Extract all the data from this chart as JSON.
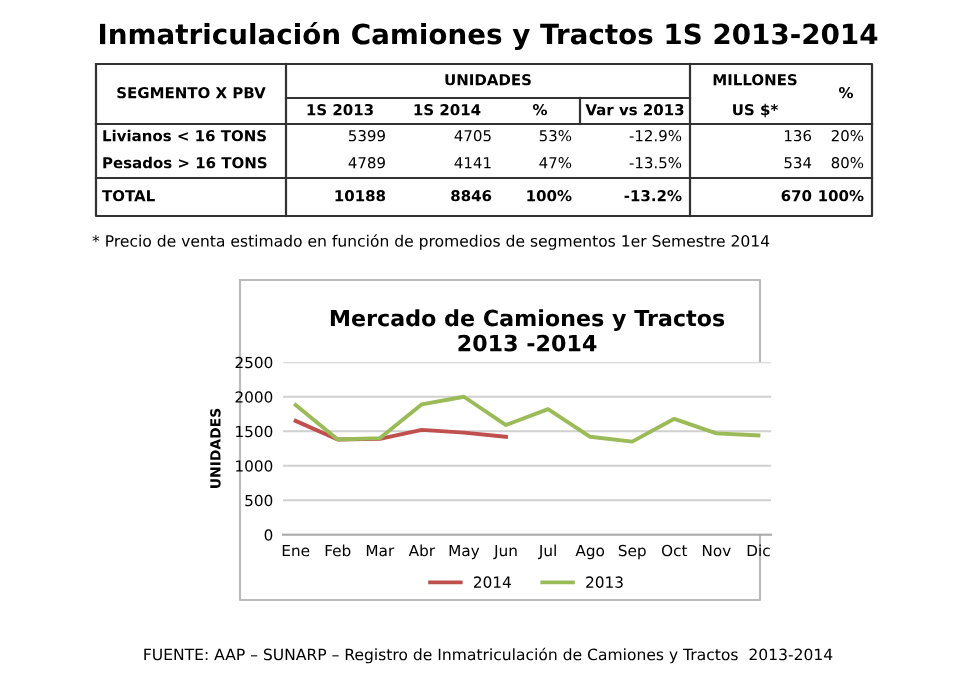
{
  "chart_data": [
    {
      "type": "other",
      "title": "Inmatriculación Camiones y Tractos 1S 2013-2014",
      "annotations": [
        "SEGMENTO X PBV",
        "UNIDADES",
        "MILLONES",
        "%",
        "1S 2013",
        "1S 2014",
        "%",
        "Var vs 2013",
        "US $*",
        "Livianos < 16 TONS",
        "5399",
        "4705",
        "53%",
        "-12.9%",
        "136",
        "20%",
        "Pesados > 16 TONS",
        "4789",
        "4141",
        "47%",
        "-13.5%",
        "534",
        "80%",
        "TOTAL",
        "10188",
        "8846",
        "100%",
        "-13.2%",
        "670",
        "100%",
        "* Precio de venta estimado en función de promedios de segmentos 1er Semestre 2014"
      ]
    },
    {
      "type": "line",
      "title": "Mercado de Camiones y Tractos\n2013 -2014",
      "categories": [
        "Ene",
        "Feb",
        "Mar",
        "Abr",
        "May",
        "Jun",
        "Jul",
        "Ago",
        "Sep",
        "Oct",
        "Nov",
        "Dic"
      ],
      "series": [
        {
          "name": "2014",
          "color": "#c0504d",
          "values": [
            1650,
            1380,
            1390,
            1520,
            1480,
            1420,
            null,
            null,
            null,
            null,
            null,
            null
          ]
        },
        {
          "name": "2013",
          "color": "#9bbb59",
          "values": [
            1880,
            1380,
            1400,
            1890,
            2000,
            1590,
            1820,
            1420,
            1350,
            1680,
            1470,
            1440
          ]
        }
      ],
      "ylabel": "UNIDADES",
      "ylim": [
        0,
        2500
      ],
      "yticks": [
        0,
        500,
        1000,
        1500,
        2000,
        2500
      ],
      "grid": "y",
      "legend": "bottom",
      "annotations": [
        "FUENTE: AAP – SUNARP – Registro de Inmatriculación de Camiones y Tractos  2013-2014"
      ]
    }
  ]
}
